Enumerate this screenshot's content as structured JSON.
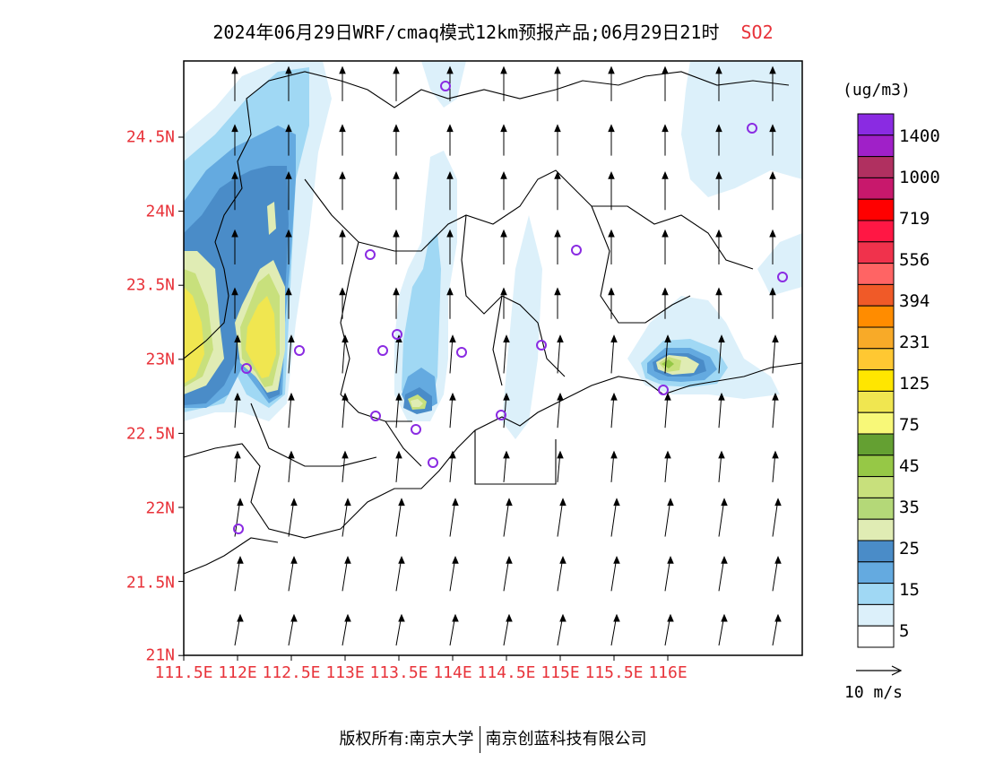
{
  "title": {
    "main": "2024年06月29日WRF/cmaq模式12km预报产品;06月29日21时",
    "species": "SO2"
  },
  "map": {
    "lat_ticks": [
      "24.5N",
      "24N",
      "23.5N",
      "23N",
      "22.5N",
      "22N",
      "21.5N",
      "21N"
    ],
    "lon_ticks": [
      "111.5E",
      "112E",
      "112.5E",
      "113E",
      "113.5E",
      "114E",
      "114.5E",
      "115E",
      "115.5E",
      "116E"
    ],
    "lat_range": [
      21.0,
      25.05
    ],
    "lon_range": [
      111.5,
      117.25
    ],
    "colors": {
      "axis_text": "#e8333a",
      "station_marker": "#8a2be2",
      "coast": "#000000"
    }
  },
  "colorbar": {
    "unit": "(ug/m3)",
    "labels": [
      "1400",
      "1000",
      "719",
      "556",
      "394",
      "231",
      "125",
      "75",
      "45",
      "35",
      "25",
      "15",
      "5"
    ],
    "colors": [
      "#8a2be2",
      "#a020c8",
      "#b03060",
      "#c8186c",
      "#ff0000",
      "#ff1744",
      "#f0324c",
      "#ff6464",
      "#f05a28",
      "#ff8c00",
      "#f8aa28",
      "#ffc832",
      "#ffe600",
      "#f0e650",
      "#f8f878",
      "#64a032",
      "#96c846",
      "#c8e07c",
      "#b4d878",
      "#e0ecb4",
      "#4a8cc8",
      "#64aae0",
      "#a0d8f4",
      "#dcf0fa",
      "#ffffff"
    ]
  },
  "wind_vector": {
    "reference_label": "10 m/s"
  },
  "footer": {
    "left": "版权所有:南京大学",
    "right": "南京创蓝科技有限公司"
  }
}
